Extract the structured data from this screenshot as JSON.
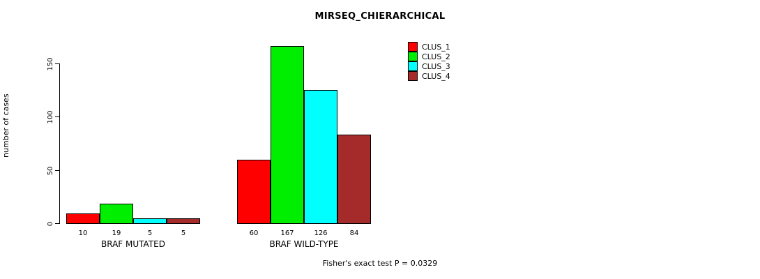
{
  "chart_data": {
    "type": "bar",
    "title": "MIRSEQ_CHIERARCHICAL",
    "ylabel": "number of cases",
    "xlabel": "",
    "categories": [
      "BRAF MUTATED",
      "BRAF WILD-TYPE"
    ],
    "series": [
      {
        "name": "CLUS_1",
        "color": "#ff0000",
        "values": [
          10,
          60
        ]
      },
      {
        "name": "CLUS_2",
        "color": "#00ee00",
        "values": [
          19,
          167
        ]
      },
      {
        "name": "CLUS_3",
        "color": "#00ffff",
        "values": [
          5,
          126
        ]
      },
      {
        "name": "CLUS_4",
        "color": "#a52a2a",
        "values": [
          5,
          84
        ]
      }
    ],
    "yticks": [
      0,
      50,
      100,
      150
    ],
    "ylim": [
      0,
      184
    ],
    "grid": false,
    "legend_position": "top-right",
    "bar_value_labels": [
      [
        10,
        19,
        5,
        5
      ],
      [
        60,
        167,
        126,
        84
      ]
    ],
    "footnote": "Fisher's exact test P = 0.0329"
  }
}
